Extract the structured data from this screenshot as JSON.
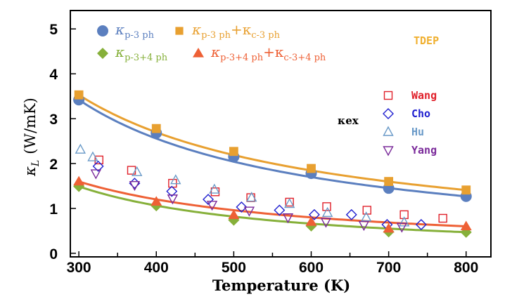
{
  "chart_data": {
    "type": "scatter",
    "xlabel": "Temperature (K)",
    "ylabel_symbol": "κ",
    "ylabel_sub": "L",
    "ylabel_unit": "(W/mK)",
    "xlim": [
      289,
      832
    ],
    "ylim": [
      -0.08,
      5.41
    ],
    "xticks": [
      300,
      400,
      500,
      600,
      700,
      800
    ],
    "yticks": [
      0,
      1,
      2,
      3,
      4,
      5
    ],
    "grid": false,
    "annotation": "TDEP",
    "annotation_color": "#f0b030",
    "exp_label": "κex",
    "calc_series": [
      {
        "name_main": "κ",
        "name_sub": "p-3 ph",
        "name_extra": "",
        "name_extra_sub": "",
        "marker": "circle",
        "color": "#5b7fbf",
        "x": [
          300,
          400,
          500,
          600,
          700,
          800
        ],
        "y": [
          3.42,
          2.68,
          2.15,
          1.78,
          1.45,
          1.27
        ]
      },
      {
        "name_main": "κ",
        "name_sub": "p-3 ph",
        "name_extra": "+κ",
        "name_extra_sub": "c-3 ph",
        "marker": "square",
        "color": "#e8a030",
        "x": [
          300,
          400,
          500,
          600,
          700,
          800
        ],
        "y": [
          3.53,
          2.78,
          2.27,
          1.89,
          1.6,
          1.41
        ]
      },
      {
        "name_main": "κ",
        "name_sub": "p-3+4 ph",
        "name_extra": "",
        "name_extra_sub": "",
        "marker": "diamond",
        "color": "#86b03a",
        "x": [
          300,
          400,
          500,
          600,
          700,
          800
        ],
        "y": [
          1.49,
          1.06,
          0.74,
          0.61,
          0.48,
          0.47
        ]
      },
      {
        "name_main": "κ",
        "name_sub": "p-3+4 ph",
        "name_extra": "+κ",
        "name_extra_sub": "c-3+4 ph",
        "marker": "triangle",
        "color": "#ee6035",
        "x": [
          300,
          400,
          500,
          600,
          700,
          800
        ],
        "y": [
          1.6,
          1.15,
          0.85,
          0.7,
          0.55,
          0.6
        ]
      }
    ],
    "exp_series": [
      {
        "name": "Wang",
        "marker": "open-square",
        "color": "#e0202a",
        "x": [
          326,
          368,
          421,
          476,
          522,
          572,
          620,
          672,
          720,
          770
        ],
        "y": [
          2.08,
          1.85,
          1.56,
          1.37,
          1.24,
          1.14,
          1.04,
          0.96,
          0.86,
          0.78
        ]
      },
      {
        "name": "Cho",
        "marker": "open-diamond",
        "color": "#2020d0",
        "x": [
          325,
          372,
          420,
          467,
          510,
          559,
          604,
          652,
          698,
          742
        ],
        "y": [
          1.94,
          1.56,
          1.38,
          1.2,
          1.03,
          0.96,
          0.86,
          0.86,
          0.64,
          0.64
        ]
      },
      {
        "name": "Hu",
        "marker": "open-triangle",
        "color": "#6a9ac8",
        "x": [
          302,
          318,
          375,
          425,
          475,
          523,
          572,
          621,
          671,
          720
        ],
        "y": [
          2.31,
          2.14,
          1.81,
          1.63,
          1.42,
          1.24,
          1.1,
          0.9,
          0.8,
          0.69
        ]
      },
      {
        "name": "Yang",
        "marker": "open-inverted-triangle",
        "color": "#7a2a9a",
        "x": [
          322,
          372,
          421,
          472,
          520,
          570,
          619,
          668,
          717
        ],
        "y": [
          1.78,
          1.52,
          1.22,
          1.08,
          0.95,
          0.8,
          0.7,
          0.63,
          0.59
        ]
      }
    ]
  }
}
